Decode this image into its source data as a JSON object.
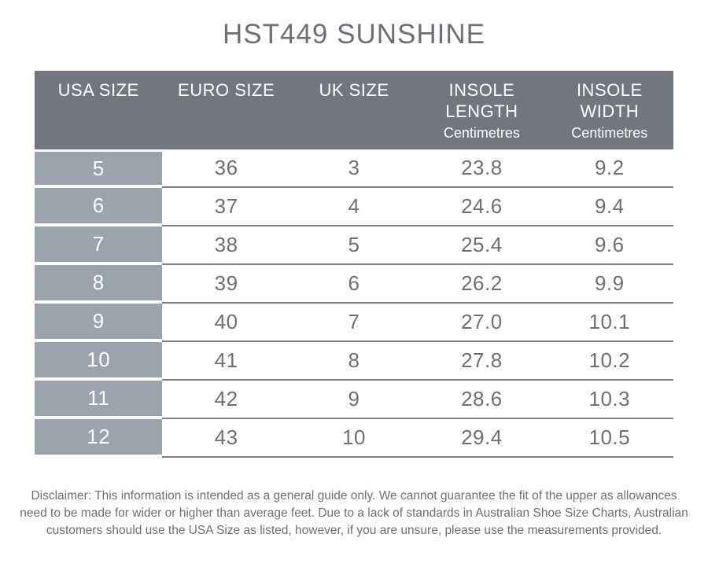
{
  "title": "HST449 SUNSHINE",
  "table": {
    "headers": [
      {
        "label": "USA SIZE",
        "sub": ""
      },
      {
        "label": "EURO SIZE",
        "sub": ""
      },
      {
        "label": "UK SIZE",
        "sub": ""
      },
      {
        "label": "INSOLE LENGTH",
        "sub": "Centimetres"
      },
      {
        "label": "INSOLE WIDTH",
        "sub": "Centimetres"
      }
    ],
    "rows": [
      [
        "5",
        "36",
        "3",
        "23.8",
        "9.2"
      ],
      [
        "6",
        "37",
        "4",
        "24.6",
        "9.4"
      ],
      [
        "7",
        "38",
        "5",
        "25.4",
        "9.6"
      ],
      [
        "8",
        "39",
        "6",
        "26.2",
        "9.9"
      ],
      [
        "9",
        "40",
        "7",
        "27.0",
        "10.1"
      ],
      [
        "10",
        "41",
        "8",
        "27.8",
        "10.2"
      ],
      [
        "11",
        "42",
        "9",
        "28.6",
        "10.3"
      ],
      [
        "12",
        "43",
        "10",
        "29.4",
        "10.5"
      ]
    ]
  },
  "disclaimer": {
    "lines": [
      "Disclaimer: This information is intended as a general guide only. We cannot guarantee the fit of the upper as allowances",
      "need to be made for wider or higher than average feet. Due to a lack of standards in Australian Shoe Size Charts, Australian",
      "customers should use the USA Size as listed, however, if you are unsure, please use the measurements provided."
    ]
  },
  "colors": {
    "header_bg": "#72767f",
    "usa_col_bg": "#9ba3ac",
    "header_text": "#ffffff",
    "body_text": "#6d7177",
    "row_border": "#7d828a",
    "page_bg": "#ffffff"
  },
  "chart_data": {
    "type": "table",
    "title": "HST449 SUNSHINE",
    "columns": [
      "USA SIZE",
      "EURO SIZE",
      "UK SIZE",
      "INSOLE LENGTH (Centimetres)",
      "INSOLE WIDTH (Centimetres)"
    ],
    "rows": [
      [
        5,
        36,
        3,
        23.8,
        9.2
      ],
      [
        6,
        37,
        4,
        24.6,
        9.4
      ],
      [
        7,
        38,
        5,
        25.4,
        9.6
      ],
      [
        8,
        39,
        6,
        26.2,
        9.9
      ],
      [
        9,
        40,
        7,
        27.0,
        10.1
      ],
      [
        10,
        41,
        8,
        27.8,
        10.2
      ],
      [
        11,
        42,
        9,
        28.6,
        10.3
      ],
      [
        12,
        43,
        10,
        29.4,
        10.5
      ]
    ]
  }
}
